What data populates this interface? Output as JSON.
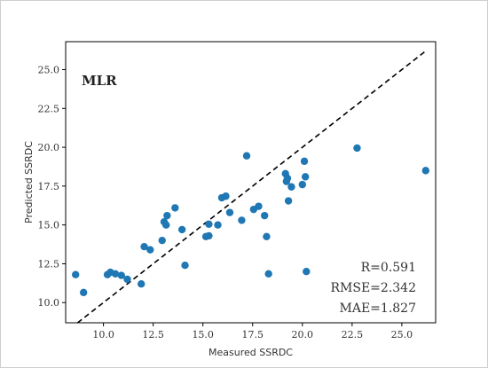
{
  "chart_data": {
    "type": "scatter",
    "title": "",
    "annotation_label": "MLR",
    "xlabel": "Measured SSRDC",
    "ylabel": "Predicted SSRDC",
    "xlim": [
      8.1,
      26.7
    ],
    "ylim": [
      8.7,
      26.8
    ],
    "xticks": [
      10.0,
      12.5,
      15.0,
      17.5,
      20.0,
      22.5,
      25.0
    ],
    "yticks": [
      10.0,
      12.5,
      15.0,
      17.5,
      20.0,
      22.5,
      25.0
    ],
    "xtick_labels": [
      "10.0",
      "12.5",
      "15.0",
      "17.5",
      "20.0",
      "22.5",
      "25.0"
    ],
    "ytick_labels": [
      "10.0",
      "12.5",
      "15.0",
      "17.5",
      "20.0",
      "22.5",
      "25.0"
    ],
    "grid": false,
    "point_color": "#1f77b4",
    "reference_line": {
      "x": [
        8.7,
        26.2
      ],
      "y": [
        8.7,
        26.2
      ],
      "style": "dashed",
      "color": "#000000"
    },
    "metrics": [
      "R=0.591",
      "RMSE=2.342",
      "MAE=1.827"
    ],
    "points": [
      {
        "x": 8.6,
        "y": 11.8
      },
      {
        "x": 9.0,
        "y": 10.65
      },
      {
        "x": 10.2,
        "y": 11.8
      },
      {
        "x": 10.35,
        "y": 11.95
      },
      {
        "x": 10.6,
        "y": 11.85
      },
      {
        "x": 10.9,
        "y": 11.75
      },
      {
        "x": 11.2,
        "y": 11.5
      },
      {
        "x": 11.9,
        "y": 11.2
      },
      {
        "x": 12.05,
        "y": 13.6
      },
      {
        "x": 12.35,
        "y": 13.4
      },
      {
        "x": 12.95,
        "y": 14.0
      },
      {
        "x": 13.05,
        "y": 15.2
      },
      {
        "x": 13.15,
        "y": 15.0
      },
      {
        "x": 13.2,
        "y": 15.6
      },
      {
        "x": 13.6,
        "y": 16.1
      },
      {
        "x": 13.95,
        "y": 14.7
      },
      {
        "x": 14.1,
        "y": 12.4
      },
      {
        "x": 15.15,
        "y": 14.25
      },
      {
        "x": 15.3,
        "y": 14.3
      },
      {
        "x": 15.3,
        "y": 15.05
      },
      {
        "x": 15.75,
        "y": 15.0
      },
      {
        "x": 15.95,
        "y": 16.75
      },
      {
        "x": 16.15,
        "y": 16.85
      },
      {
        "x": 16.35,
        "y": 15.8
      },
      {
        "x": 16.95,
        "y": 15.3
      },
      {
        "x": 17.2,
        "y": 19.45
      },
      {
        "x": 17.55,
        "y": 16.0
      },
      {
        "x": 17.8,
        "y": 16.2
      },
      {
        "x": 18.1,
        "y": 15.6
      },
      {
        "x": 18.2,
        "y": 14.25
      },
      {
        "x": 18.3,
        "y": 11.85
      },
      {
        "x": 19.15,
        "y": 18.3
      },
      {
        "x": 19.2,
        "y": 17.8
      },
      {
        "x": 19.25,
        "y": 18.0
      },
      {
        "x": 19.3,
        "y": 16.55
      },
      {
        "x": 19.45,
        "y": 17.45
      },
      {
        "x": 20.0,
        "y": 17.6
      },
      {
        "x": 20.1,
        "y": 19.1
      },
      {
        "x": 20.15,
        "y": 18.1
      },
      {
        "x": 20.2,
        "y": 12.0
      },
      {
        "x": 22.75,
        "y": 19.95
      },
      {
        "x": 26.2,
        "y": 18.5
      }
    ]
  }
}
